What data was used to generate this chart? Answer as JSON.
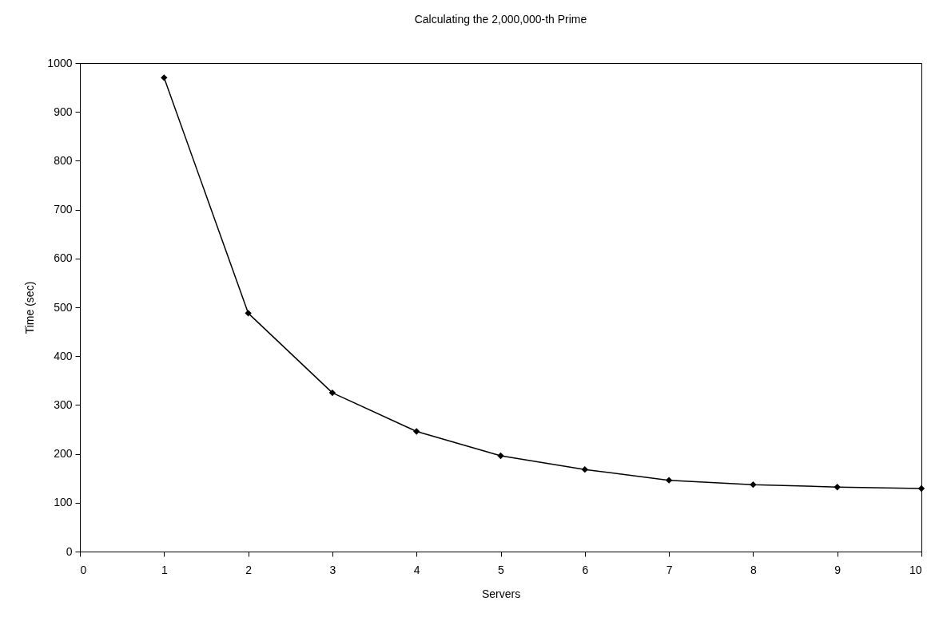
{
  "chart_data": {
    "type": "line",
    "title": "Calculating the 2,000,000-th Prime",
    "xlabel": "Servers",
    "ylabel": "Time (sec)",
    "x": [
      1,
      2,
      3,
      4,
      5,
      6,
      7,
      8,
      9,
      10
    ],
    "series": [
      {
        "color": "#000000",
        "values": [
          970,
          488,
          325,
          246,
          196,
          168,
          146,
          137,
          132,
          129
        ]
      }
    ],
    "xlim": [
      0,
      10
    ],
    "xticks": [
      0,
      1,
      2,
      3,
      4,
      5,
      6,
      7,
      8,
      9,
      10
    ],
    "ylim": [
      0,
      1000
    ],
    "yticks": [
      0,
      100,
      200,
      300,
      400,
      500,
      600,
      700,
      800,
      900,
      1000
    ],
    "grid": false,
    "legend": false,
    "marker": "diamond",
    "line_style": "solid"
  }
}
